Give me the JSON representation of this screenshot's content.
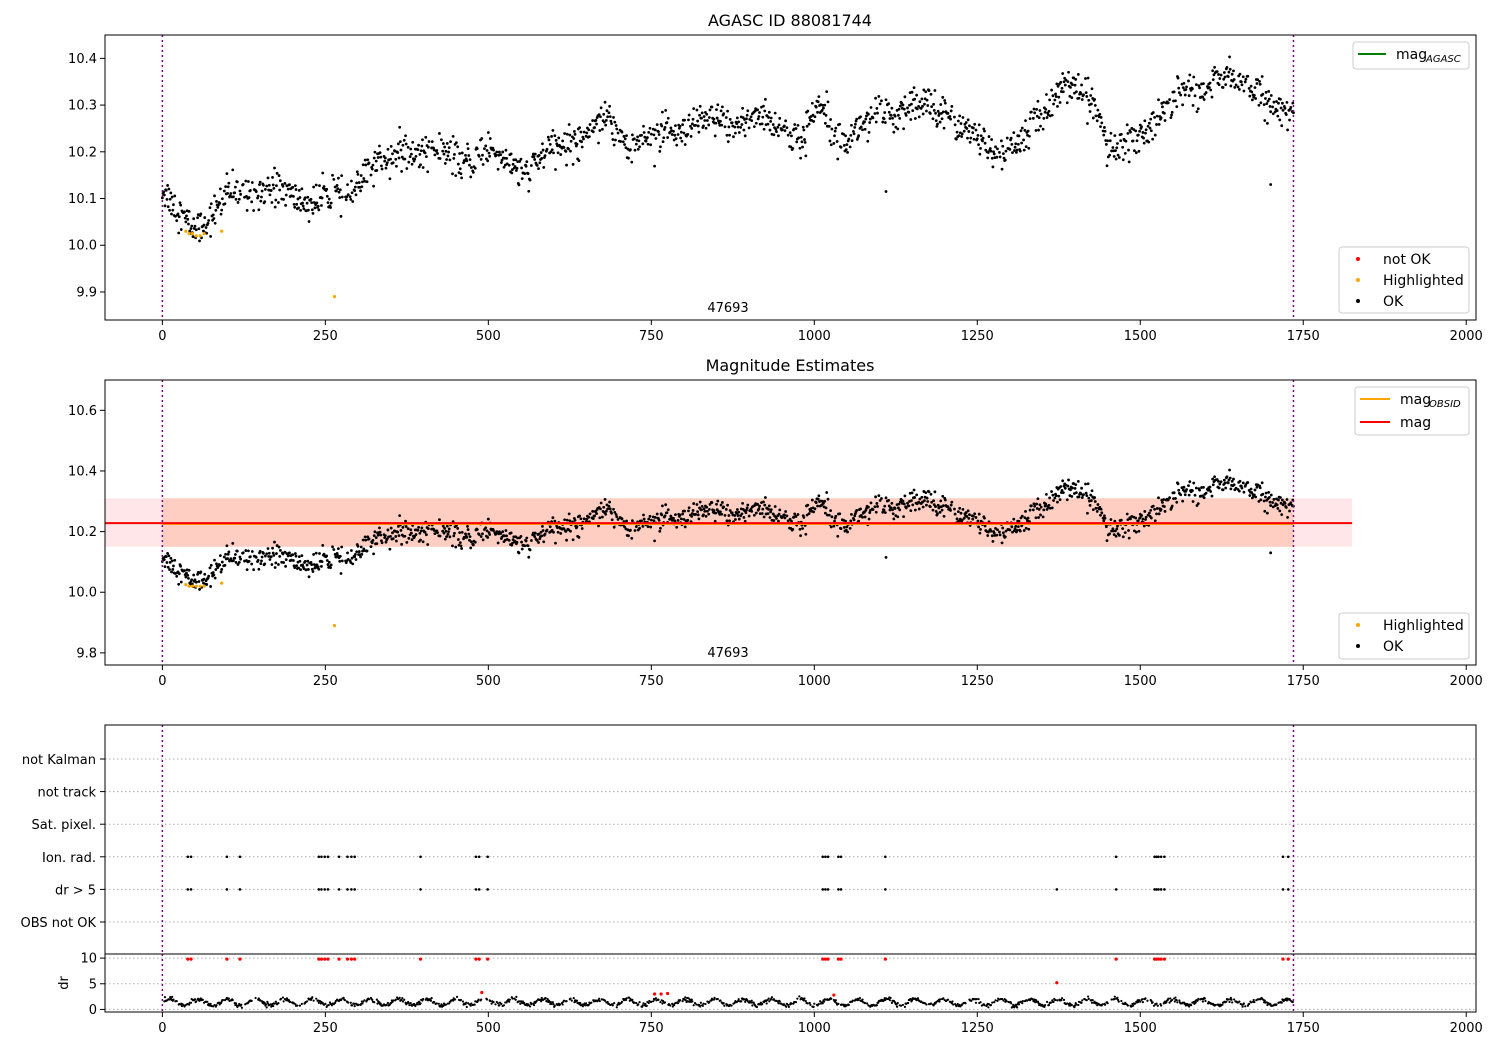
{
  "chart_data": [
    {
      "type": "scatter",
      "title": "AGASC ID 88081744",
      "annotation": "47693",
      "xlim": [
        -88,
        2015
      ],
      "ylim": [
        9.84,
        10.45
      ],
      "xticks": [
        0,
        250,
        500,
        750,
        1000,
        1250,
        1500,
        1750,
        2000
      ],
      "yticks": [
        9.9,
        10.0,
        10.1,
        10.2,
        10.3,
        10.4
      ],
      "vlines": [
        0,
        1735
      ],
      "lines": [
        {
          "name": "mag",
          "sub": "AGASC",
          "color": "#008000",
          "legend_only": true
        }
      ],
      "series": [
        {
          "name": "not OK",
          "color": "#ff0000",
          "points": []
        },
        {
          "name": "Highlighted",
          "color": "#ffa500",
          "points": [
            [
              36,
              10.03
            ],
            [
              41,
              10.025
            ],
            [
              46,
              10.025
            ],
            [
              52,
              10.02
            ],
            [
              58,
              10.02
            ],
            [
              64,
              10.025
            ],
            [
              91,
              10.03
            ],
            [
              264,
              9.89
            ]
          ]
        },
        {
          "name": "OK",
          "color": "#000000",
          "description": "dense time-series of ~1735 OK points",
          "trend": [
            [
              0,
              10.12
            ],
            [
              20,
              10.07
            ],
            [
              45,
              10.04
            ],
            [
              70,
              10.06
            ],
            [
              100,
              10.1
            ],
            [
              150,
              10.13
            ],
            [
              200,
              10.1
            ],
            [
              250,
              10.1
            ],
            [
              280,
              10.1
            ],
            [
              320,
              10.17
            ],
            [
              400,
              10.21
            ],
            [
              450,
              10.18
            ],
            [
              500,
              10.2
            ],
            [
              560,
              10.16
            ],
            [
              620,
              10.22
            ],
            [
              680,
              10.27
            ],
            [
              720,
              10.22
            ],
            [
              780,
              10.24
            ],
            [
              840,
              10.26
            ],
            [
              900,
              10.27
            ],
            [
              950,
              10.26
            ],
            [
              980,
              10.22
            ],
            [
              1010,
              10.3
            ],
            [
              1050,
              10.23
            ],
            [
              1100,
              10.28
            ],
            [
              1150,
              10.29
            ],
            [
              1200,
              10.3
            ],
            [
              1240,
              10.23
            ],
            [
              1280,
              10.2
            ],
            [
              1320,
              10.22
            ],
            [
              1350,
              10.28
            ],
            [
              1375,
              10.35
            ],
            [
              1400,
              10.32
            ],
            [
              1430,
              10.3
            ],
            [
              1460,
              10.2
            ],
            [
              1500,
              10.23
            ],
            [
              1530,
              10.28
            ],
            [
              1560,
              10.33
            ],
            [
              1590,
              10.32
            ],
            [
              1620,
              10.37
            ],
            [
              1660,
              10.34
            ],
            [
              1700,
              10.31
            ],
            [
              1735,
              10.27
            ]
          ],
          "outliers": [
            [
              1110,
              10.115
            ],
            [
              1700,
              10.13
            ]
          ]
        }
      ],
      "legend_line": "top-right",
      "legend_points": "bottom-right"
    },
    {
      "type": "scatter",
      "title": "Magnitude Estimates",
      "annotation": "47693",
      "xlim": [
        -88,
        2015
      ],
      "ylim": [
        9.76,
        10.7
      ],
      "xticks": [
        0,
        250,
        500,
        750,
        1000,
        1250,
        1500,
        1750,
        2000
      ],
      "yticks": [
        9.8,
        10.0,
        10.2,
        10.4,
        10.6
      ],
      "vlines": [
        0,
        1735
      ],
      "bands": [
        {
          "color": "#ffb6c1",
          "opacity": 0.35,
          "x": [
            -88,
            1825
          ],
          "y": [
            10.15,
            10.31
          ]
        },
        {
          "color": "#ffa07a",
          "opacity": 0.35,
          "x": [
            0,
            1735
          ],
          "y": [
            10.15,
            10.31
          ]
        }
      ],
      "lines": [
        {
          "name": "mag",
          "sub": "OBSID",
          "color": "#ffa500",
          "y": 10.225,
          "x": [
            0,
            1735
          ]
        },
        {
          "name": "mag",
          "color": "#ff0000",
          "y": 10.228,
          "x": [
            -88,
            1825
          ]
        }
      ],
      "series": [
        {
          "name": "Highlighted",
          "color": "#ffa500",
          "points": [
            [
              36,
              10.025
            ],
            [
              41,
              10.02
            ],
            [
              46,
              10.02
            ],
            [
              52,
              10.02
            ],
            [
              58,
              10.02
            ],
            [
              64,
              10.02
            ],
            [
              91,
              10.03
            ],
            [
              264,
              9.89
            ]
          ]
        },
        {
          "name": "OK",
          "color": "#000000",
          "same_as_panel": 0
        }
      ],
      "legend_line": "top-right",
      "legend_points": "bottom-right"
    },
    {
      "type": "scatter",
      "title": "",
      "xlim": [
        -88,
        2015
      ],
      "xticks": [
        0,
        250,
        500,
        750,
        1000,
        1250,
        1500,
        1750,
        2000
      ],
      "vlines": [
        0,
        1735
      ],
      "flag_rows": [
        "not Kalman",
        "not track",
        "Sat. pixel.",
        "Ion. rad.",
        "dr > 5",
        "OBS not OK"
      ],
      "flags": {
        "Ion. rad.": [
          39,
          44,
          99,
          119,
          240,
          244,
          249,
          254,
          271,
          284,
          290,
          295,
          396,
          481,
          486,
          499,
          1013,
          1017,
          1021,
          1037,
          1041,
          1109,
          1463,
          1522,
          1525,
          1528,
          1532,
          1537,
          1719,
          1727
        ],
        "dr > 5": [
          39,
          44,
          99,
          119,
          240,
          244,
          249,
          254,
          271,
          284,
          290,
          295,
          396,
          481,
          486,
          499,
          1013,
          1017,
          1021,
          1037,
          1041,
          1109,
          1372,
          1463,
          1522,
          1525,
          1528,
          1532,
          1537,
          1719,
          1727
        ]
      },
      "dr_panel": {
        "ylabel": "dr",
        "yticks": [
          0,
          5,
          10
        ],
        "ylim": [
          -0.5,
          10.8
        ],
        "baseline_trend": [
          [
            0,
            1.5
          ],
          [
            1735,
            1.5
          ]
        ],
        "red_points_x": [
          39,
          44,
          99,
          119,
          240,
          244,
          249,
          254,
          271,
          284,
          290,
          295,
          396,
          481,
          486,
          499,
          1013,
          1017,
          1021,
          1037,
          1041,
          1109,
          1463,
          1522,
          1525,
          1528,
          1532,
          1537,
          1719,
          1727
        ],
        "red_cluster": [
          [
            755,
            3.0
          ],
          [
            765,
            3.0
          ],
          [
            775,
            3.1
          ],
          [
            490,
            3.3
          ],
          [
            1372,
            5.2
          ],
          [
            1030,
            2.8
          ]
        ]
      }
    }
  ]
}
